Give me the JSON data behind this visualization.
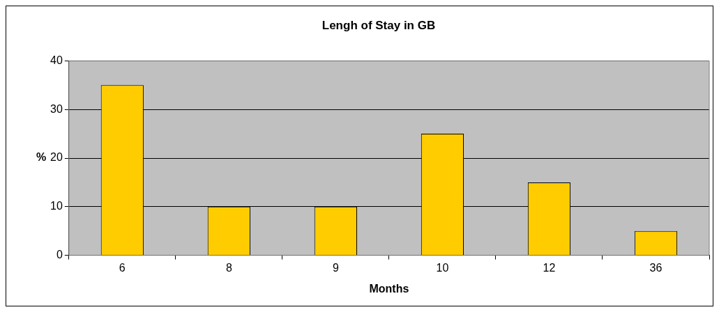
{
  "chart_data": {
    "type": "bar",
    "title": "Lengh of Stay in GB",
    "xlabel": "Months",
    "ylabel": "%",
    "categories": [
      "6",
      "8",
      "9",
      "10",
      "12",
      "36"
    ],
    "series": [
      {
        "color": "#ffcc00",
        "values": [
          35,
          10,
          10,
          25,
          15,
          5
        ]
      }
    ],
    "ylim": [
      0,
      40
    ],
    "yticks": [
      0,
      10,
      20,
      30,
      40
    ],
    "grid": "y",
    "legend": false
  }
}
